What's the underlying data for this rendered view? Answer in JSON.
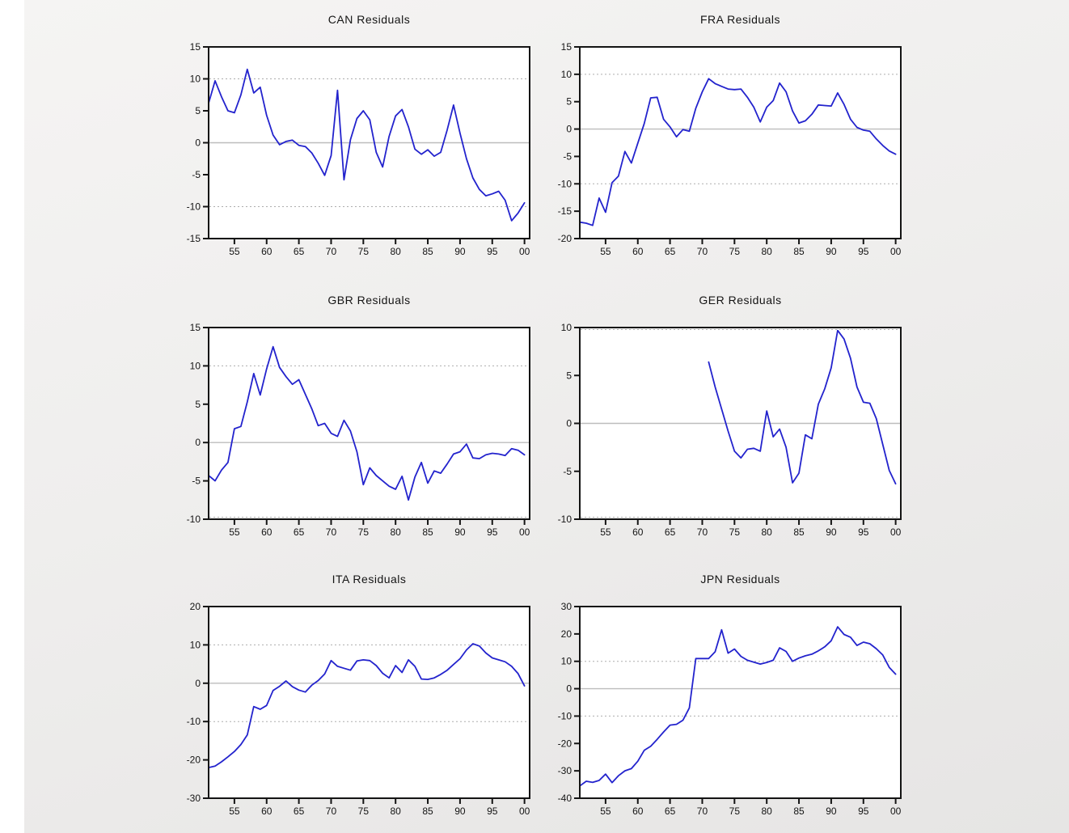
{
  "style": {
    "line_color": "#2323cd",
    "plot_bg": "#ffffff",
    "border_color": "#141414",
    "grid_dashed_color": "#adadad",
    "grid_zero_color": "#bdbdbd",
    "text_color": "#141414",
    "page_bg_top": "#f5f4f3",
    "page_bg_bottom": "#e6e5e4",
    "left_strip_color": "#ffffff"
  },
  "chart_data": [
    {
      "type": "line",
      "title": "CAN Residuals",
      "xlabel": "",
      "ylabel": "",
      "legend": "none",
      "grid": "dashed at +10/-10, solid at 0",
      "xlim": [
        1951,
        2000.8
      ],
      "ylim": [
        -15,
        15
      ],
      "yticks": [
        15,
        10,
        5,
        0,
        -5,
        -10,
        -15
      ],
      "xtick_years": [
        1955,
        1960,
        1965,
        1970,
        1975,
        1980,
        1985,
        1990,
        1995,
        2000
      ],
      "xtick_labels": [
        "55",
        "60",
        "65",
        "70",
        "75",
        "80",
        "85",
        "90",
        "95",
        "00"
      ],
      "grid_dashed": [
        10,
        -10
      ],
      "grid_solid": [
        0
      ],
      "years": [
        1951,
        1952,
        1953,
        1954,
        1955,
        1956,
        1957,
        1958,
        1959,
        1960,
        1961,
        1962,
        1963,
        1964,
        1965,
        1966,
        1967,
        1968,
        1969,
        1970,
        1971,
        1972,
        1973,
        1974,
        1975,
        1976,
        1977,
        1978,
        1979,
        1980,
        1981,
        1982,
        1983,
        1984,
        1985,
        1986,
        1987,
        1988,
        1989,
        1990,
        1991,
        1992,
        1993,
        1994,
        1995,
        1996,
        1997,
        1998,
        1999,
        2000
      ],
      "values": [
        6.2,
        9.7,
        7.2,
        5.0,
        4.7,
        7.5,
        11.5,
        7.8,
        8.7,
        4.3,
        1.2,
        -0.3,
        0.2,
        0.4,
        -0.4,
        -0.6,
        -1.6,
        -3.2,
        -5.1,
        -2.0,
        8.2,
        -5.8,
        0.5,
        3.8,
        5.0,
        3.6,
        -1.5,
        -3.8,
        1.0,
        4.2,
        5.2,
        2.5,
        -1.0,
        -1.8,
        -1.1,
        -2.1,
        -1.5,
        2.0,
        5.9,
        1.5,
        -2.5,
        -5.5,
        -7.3,
        -8.3,
        -8.0,
        -7.6,
        -9.0,
        -12.2,
        -11.0,
        -9.4
      ]
    },
    {
      "type": "line",
      "title": "FRA Residuals",
      "xlabel": "",
      "ylabel": "",
      "legend": "none",
      "grid": "dashed at +10/-10, solid at 0",
      "xlim": [
        1951,
        2000.8
      ],
      "ylim": [
        -20,
        15
      ],
      "yticks": [
        15,
        10,
        5,
        0,
        -5,
        -10,
        -15,
        -20
      ],
      "xtick_years": [
        1955,
        1960,
        1965,
        1970,
        1975,
        1980,
        1985,
        1990,
        1995,
        2000
      ],
      "xtick_labels": [
        "55",
        "60",
        "65",
        "70",
        "75",
        "80",
        "85",
        "90",
        "95",
        "00"
      ],
      "grid_dashed": [
        10,
        -10
      ],
      "grid_solid": [
        0
      ],
      "years": [
        1951,
        1952,
        1953,
        1954,
        1955,
        1956,
        1957,
        1958,
        1959,
        1960,
        1961,
        1962,
        1963,
        1964,
        1965,
        1966,
        1967,
        1968,
        1969,
        1970,
        1971,
        1972,
        1973,
        1974,
        1975,
        1976,
        1977,
        1978,
        1979,
        1980,
        1981,
        1982,
        1983,
        1984,
        1985,
        1986,
        1987,
        1988,
        1989,
        1990,
        1991,
        1992,
        1993,
        1994,
        1995,
        1996,
        1997,
        1998,
        1999,
        2000
      ],
      "values": [
        -17.0,
        -17.2,
        -17.6,
        -12.6,
        -15.2,
        -9.8,
        -8.6,
        -4.1,
        -6.2,
        -2.6,
        1.0,
        5.7,
        5.8,
        1.8,
        0.4,
        -1.4,
        -0.1,
        -0.4,
        3.8,
        6.8,
        9.2,
        8.3,
        7.8,
        7.3,
        7.2,
        7.3,
        5.8,
        4.0,
        1.3,
        4.0,
        5.2,
        8.4,
        6.8,
        3.3,
        1.1,
        1.5,
        2.7,
        4.4,
        4.3,
        4.2,
        6.6,
        4.5,
        1.8,
        0.3,
        -0.2,
        -0.4,
        -1.8,
        -3.0,
        -4.0,
        -4.6
      ]
    },
    {
      "type": "line",
      "title": "GBR Residuals",
      "xlabel": "",
      "ylabel": "",
      "legend": "none",
      "grid": "dashed at +10/-10, solid at 0",
      "xlim": [
        1951,
        2000.8
      ],
      "ylim": [
        -10,
        15
      ],
      "yticks": [
        15,
        10,
        5,
        0,
        -5,
        -10
      ],
      "xtick_years": [
        1955,
        1960,
        1965,
        1970,
        1975,
        1980,
        1985,
        1990,
        1995,
        2000
      ],
      "xtick_labels": [
        "55",
        "60",
        "65",
        "70",
        "75",
        "80",
        "85",
        "90",
        "95",
        "00"
      ],
      "grid_dashed": [
        10,
        -10
      ],
      "grid_solid": [
        0
      ],
      "years": [
        1951,
        1952,
        1953,
        1954,
        1955,
        1956,
        1957,
        1958,
        1959,
        1960,
        1961,
        1962,
        1963,
        1964,
        1965,
        1966,
        1967,
        1968,
        1969,
        1970,
        1971,
        1972,
        1973,
        1974,
        1975,
        1976,
        1977,
        1978,
        1979,
        1980,
        1981,
        1982,
        1983,
        1984,
        1985,
        1986,
        1987,
        1988,
        1989,
        1990,
        1991,
        1992,
        1993,
        1994,
        1995,
        1996,
        1997,
        1998,
        1999,
        2000
      ],
      "values": [
        -4.3,
        -5.0,
        -3.6,
        -2.6,
        1.8,
        2.1,
        5.3,
        9.0,
        6.2,
        9.6,
        12.5,
        9.8,
        8.6,
        7.6,
        8.2,
        6.3,
        4.4,
        2.2,
        2.5,
        1.2,
        0.8,
        2.9,
        1.5,
        -1.2,
        -5.5,
        -3.3,
        -4.3,
        -5.0,
        -5.7,
        -6.1,
        -4.4,
        -7.5,
        -4.5,
        -2.6,
        -5.3,
        -3.7,
        -4.0,
        -2.8,
        -1.5,
        -1.2,
        -0.2,
        -2.0,
        -2.1,
        -1.6,
        -1.4,
        -1.5,
        -1.7,
        -0.8,
        -1.0,
        -1.6
      ]
    },
    {
      "type": "line",
      "title": "GER Residuals",
      "xlabel": "",
      "ylabel": "",
      "legend": "none",
      "grid": "dashed at +10/-10, solid at 0",
      "xlim": [
        1951,
        2000.8
      ],
      "ylim": [
        -10,
        10
      ],
      "yticks": [
        10,
        5,
        0,
        -5,
        -10
      ],
      "xtick_years": [
        1955,
        1960,
        1965,
        1970,
        1975,
        1980,
        1985,
        1990,
        1995,
        2000
      ],
      "xtick_labels": [
        "55",
        "60",
        "65",
        "70",
        "75",
        "80",
        "85",
        "90",
        "95",
        "00"
      ],
      "grid_dashed": [
        10,
        -10
      ],
      "grid_solid": [
        0
      ],
      "years": [
        1971,
        1972,
        1973,
        1974,
        1975,
        1976,
        1977,
        1978,
        1979,
        1980,
        1981,
        1982,
        1983,
        1984,
        1985,
        1986,
        1987,
        1988,
        1989,
        1990,
        1991,
        1992,
        1993,
        1994,
        1995,
        1996,
        1997,
        1998,
        1999,
        2000
      ],
      "values": [
        6.4,
        3.8,
        1.5,
        -0.8,
        -2.9,
        -3.6,
        -2.7,
        -2.6,
        -2.9,
        1.3,
        -1.4,
        -0.6,
        -2.5,
        -6.2,
        -5.2,
        -1.2,
        -1.6,
        2.0,
        3.6,
        5.8,
        9.7,
        8.8,
        6.8,
        3.8,
        2.2,
        2.1,
        0.5,
        -2.2,
        -4.9,
        -6.3
      ]
    },
    {
      "type": "line",
      "title": "ITA Residuals",
      "xlabel": "",
      "ylabel": "",
      "legend": "none",
      "grid": "dashed at +10/-10, solid at 0",
      "xlim": [
        1951,
        2000.8
      ],
      "ylim": [
        -30,
        20
      ],
      "yticks": [
        20,
        10,
        0,
        -10,
        -20,
        -30
      ],
      "xtick_years": [
        1955,
        1960,
        1965,
        1970,
        1975,
        1980,
        1985,
        1990,
        1995,
        2000
      ],
      "xtick_labels": [
        "55",
        "60",
        "65",
        "70",
        "75",
        "80",
        "85",
        "90",
        "95",
        "00"
      ],
      "grid_dashed": [
        10,
        -10
      ],
      "grid_solid": [
        0
      ],
      "years": [
        1951,
        1952,
        1953,
        1954,
        1955,
        1956,
        1957,
        1958,
        1959,
        1960,
        1961,
        1962,
        1963,
        1964,
        1965,
        1966,
        1967,
        1968,
        1969,
        1970,
        1971,
        1972,
        1973,
        1974,
        1975,
        1976,
        1977,
        1978,
        1979,
        1980,
        1981,
        1982,
        1983,
        1984,
        1985,
        1986,
        1987,
        1988,
        1989,
        1990,
        1991,
        1992,
        1993,
        1994,
        1995,
        1996,
        1997,
        1998,
        1999,
        2000
      ],
      "values": [
        -22.0,
        -21.6,
        -20.5,
        -19.2,
        -17.8,
        -16.0,
        -13.5,
        -6.1,
        -6.8,
        -5.8,
        -1.9,
        -0.8,
        0.6,
        -0.9,
        -1.8,
        -2.3,
        -0.5,
        0.7,
        2.4,
        5.9,
        4.4,
        3.9,
        3.4,
        5.8,
        6.1,
        5.9,
        4.6,
        2.6,
        1.4,
        4.6,
        2.8,
        6.1,
        4.4,
        1.1,
        1.0,
        1.4,
        2.3,
        3.4,
        4.9,
        6.4,
        8.7,
        10.3,
        9.7,
        7.9,
        6.6,
        6.1,
        5.6,
        4.4,
        2.5,
        -0.7
      ]
    },
    {
      "type": "line",
      "title": "JPN Residuals",
      "xlabel": "",
      "ylabel": "",
      "legend": "none",
      "grid": "dashed at +10/-10, solid at 0",
      "xlim": [
        1951,
        2000.8
      ],
      "ylim": [
        -40,
        30
      ],
      "yticks": [
        30,
        20,
        10,
        0,
        -10,
        -20,
        -30,
        -40
      ],
      "xtick_years": [
        1955,
        1960,
        1965,
        1970,
        1975,
        1980,
        1985,
        1990,
        1995,
        2000
      ],
      "xtick_labels": [
        "55",
        "60",
        "65",
        "70",
        "75",
        "80",
        "85",
        "90",
        "95",
        "00"
      ],
      "grid_dashed": [
        10,
        -10
      ],
      "grid_solid": [
        0
      ],
      "years": [
        1951,
        1952,
        1953,
        1954,
        1955,
        1956,
        1957,
        1958,
        1959,
        1960,
        1961,
        1962,
        1963,
        1964,
        1965,
        1966,
        1967,
        1968,
        1969,
        1970,
        1971,
        1972,
        1973,
        1974,
        1975,
        1976,
        1977,
        1978,
        1979,
        1980,
        1981,
        1982,
        1983,
        1984,
        1985,
        1986,
        1987,
        1988,
        1989,
        1990,
        1991,
        1992,
        1993,
        1994,
        1995,
        1996,
        1997,
        1998,
        1999,
        2000
      ],
      "values": [
        -35.5,
        -33.8,
        -34.2,
        -33.5,
        -31.2,
        -34.3,
        -31.8,
        -30.0,
        -29.2,
        -26.5,
        -22.5,
        -21.0,
        -18.5,
        -15.8,
        -13.3,
        -13.0,
        -11.5,
        -7.0,
        11.0,
        11.0,
        11.0,
        13.5,
        21.5,
        13.0,
        14.5,
        11.8,
        10.4,
        9.7,
        9.0,
        9.6,
        10.4,
        14.9,
        13.6,
        10.0,
        11.2,
        12.0,
        12.6,
        13.8,
        15.3,
        17.5,
        22.6,
        19.8,
        18.8,
        15.8,
        17.0,
        16.4,
        14.6,
        12.3,
        7.8,
        5.3
      ]
    }
  ]
}
